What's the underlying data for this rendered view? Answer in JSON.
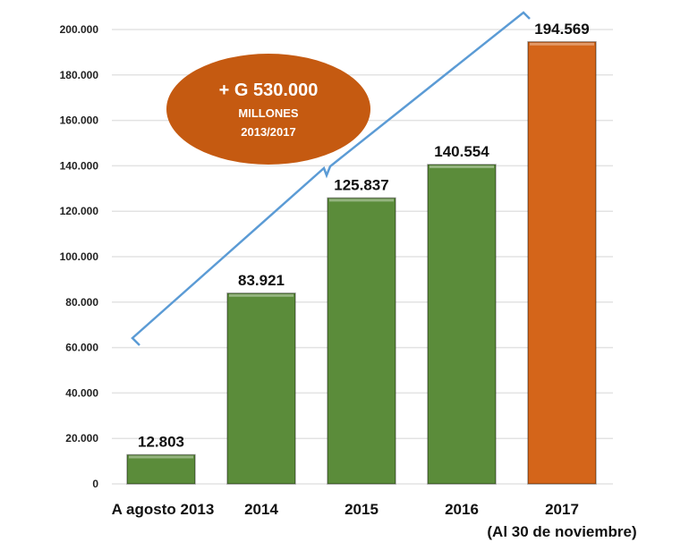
{
  "chart_data": {
    "type": "bar",
    "title": "",
    "xlabel": "",
    "ylabel": "",
    "ylim": [
      0,
      200000
    ],
    "yticks": [
      0,
      20000,
      40000,
      60000,
      80000,
      100000,
      120000,
      140000,
      160000,
      180000,
      200000
    ],
    "ytick_labels": [
      "0",
      "20.000",
      "40.000",
      "60.000",
      "80.000",
      "100.000",
      "120.000",
      "140.000",
      "160.000",
      "180.000",
      "200.000"
    ],
    "categories": [
      "A agosto 2013",
      "2014",
      "2015",
      "2016",
      "2017"
    ],
    "category_sublabels": [
      "",
      "",
      "",
      "",
      "(Al 30 de noviembre)"
    ],
    "values": [
      12803,
      83921,
      125837,
      140554,
      194569
    ],
    "data_labels": [
      "12.803",
      "83.921",
      "125.837",
      "140.554",
      "194.569"
    ],
    "colors": [
      "#5B8C3A",
      "#5B8C3A",
      "#5B8C3A",
      "#5B8C3A",
      "#D4651A"
    ],
    "grid": true,
    "annotation": {
      "line1": "+ G 530.000",
      "line2": "MILLONES",
      "line3": "2013/2017",
      "fill": "#C55A11",
      "bracket_color": "#5B9BD5"
    }
  }
}
